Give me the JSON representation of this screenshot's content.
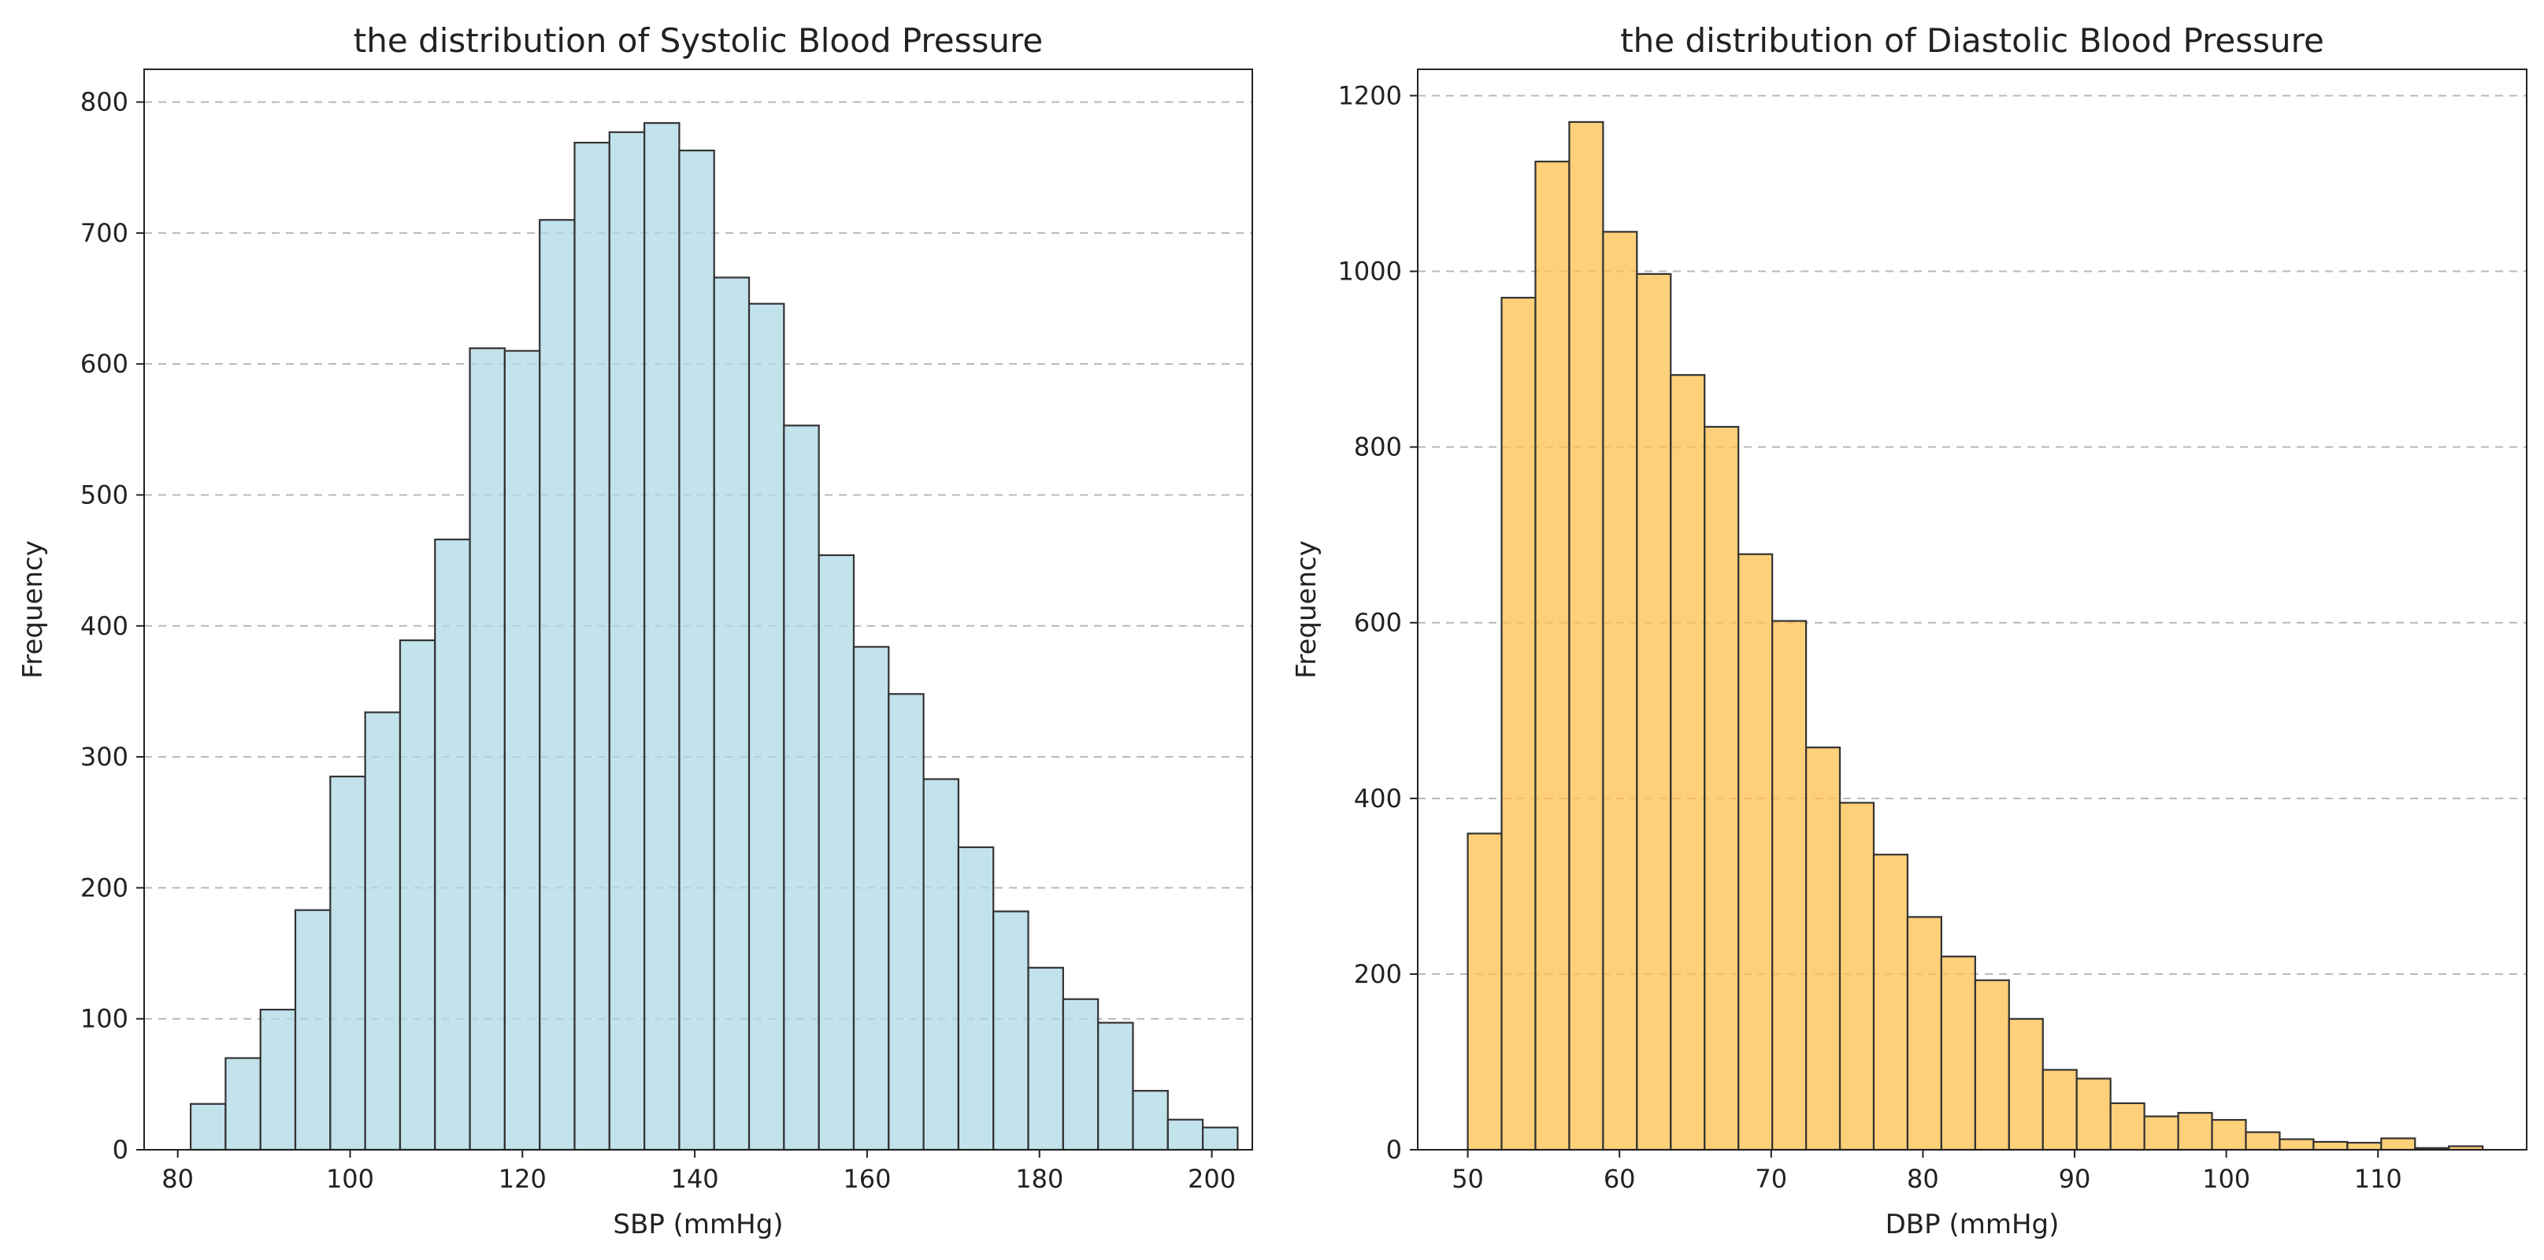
{
  "chart_data": [
    {
      "type": "bar",
      "subtype": "histogram",
      "title": "the distribution of Systolic Blood Pressure",
      "xlabel": "SBP (mmHg)",
      "ylabel": "Frequency",
      "xlim": [
        76.1,
        204.7
      ],
      "ylim": [
        0,
        825
      ],
      "xticks": [
        80,
        100,
        120,
        140,
        160,
        180,
        200
      ],
      "yticks": [
        0,
        100,
        200,
        300,
        400,
        500,
        600,
        700,
        800
      ],
      "grid": "y-dashed",
      "bar_color": "#add8e6",
      "edge_color": "#333333",
      "bin_start": 81.5,
      "bin_width": 4.05,
      "values": [
        35,
        70,
        107,
        183,
        285,
        334,
        389,
        466,
        612,
        610,
        710,
        769,
        777,
        784,
        763,
        666,
        646,
        553,
        454,
        384,
        348,
        283,
        231,
        182,
        139,
        115,
        97,
        45,
        23,
        17
      ]
    },
    {
      "type": "bar",
      "subtype": "histogram",
      "title": "the distribution of Diastolic Blood Pressure",
      "xlabel": "DBP (mmHg)",
      "ylabel": "Frequency",
      "xlim": [
        46.7,
        119.8
      ],
      "ylim": [
        0,
        1230
      ],
      "xticks": [
        50,
        60,
        70,
        80,
        90,
        100,
        110
      ],
      "yticks": [
        0,
        200,
        400,
        600,
        800,
        1000,
        1200
      ],
      "grid": "y-dashed",
      "bar_color": "#ffc04d",
      "edge_color": "#333333",
      "bin_start": 50,
      "bin_width": 2.23,
      "values": [
        360,
        970,
        1125,
        1170,
        1045,
        997,
        882,
        823,
        678,
        602,
        458,
        395,
        336,
        265,
        220,
        193,
        149,
        91,
        81,
        53,
        38,
        42,
        34,
        20,
        12,
        9,
        8,
        13,
        2,
        4
      ]
    }
  ]
}
